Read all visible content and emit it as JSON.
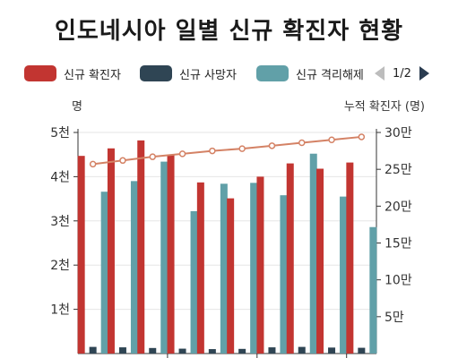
{
  "title": "인도네시아 일별 신규 확진자 현황",
  "legend": {
    "items": [
      {
        "label": "신규 확진자",
        "color": "#c23531"
      },
      {
        "label": "신규 사망자",
        "color": "#2f4554"
      },
      {
        "label": "신규 격리해제",
        "color": "#61a0a8"
      }
    ],
    "page": "1/2"
  },
  "chart_data": {
    "type": "bar",
    "left_axis_label": "명",
    "right_axis_label": "누적 확진자 (명)",
    "left_ticks": [
      "1천",
      "2천",
      "3천",
      "4천",
      "5천"
    ],
    "right_ticks": [
      "5만",
      "10만",
      "15만",
      "20만",
      "25만",
      "30만"
    ],
    "ylim_left": [
      0,
      5000
    ],
    "ylim_right": [
      0,
      300000
    ],
    "series": [
      {
        "name": "신규 확진자",
        "color": "#c23531",
        "values": [
          4470,
          4640,
          4820,
          4500,
          3870,
          3510,
          4000,
          4300,
          4180,
          4320
        ]
      },
      {
        "name": "신규 사망자",
        "color": "#2f4554",
        "values": [
          150,
          140,
          125,
          110,
          100,
          105,
          140,
          150,
          135,
          130
        ]
      },
      {
        "name": "신규 격리해제",
        "color": "#61a0a8",
        "values": [
          3660,
          3900,
          4340,
          3220,
          3840,
          3860,
          3580,
          4520,
          3550,
          2860
        ]
      },
      {
        "name": "누적 확진자",
        "color": "#d48265",
        "type": "line",
        "values": [
          257000,
          262000,
          267000,
          271000,
          275000,
          278000,
          282000,
          286000,
          290000,
          294000
        ]
      }
    ]
  }
}
